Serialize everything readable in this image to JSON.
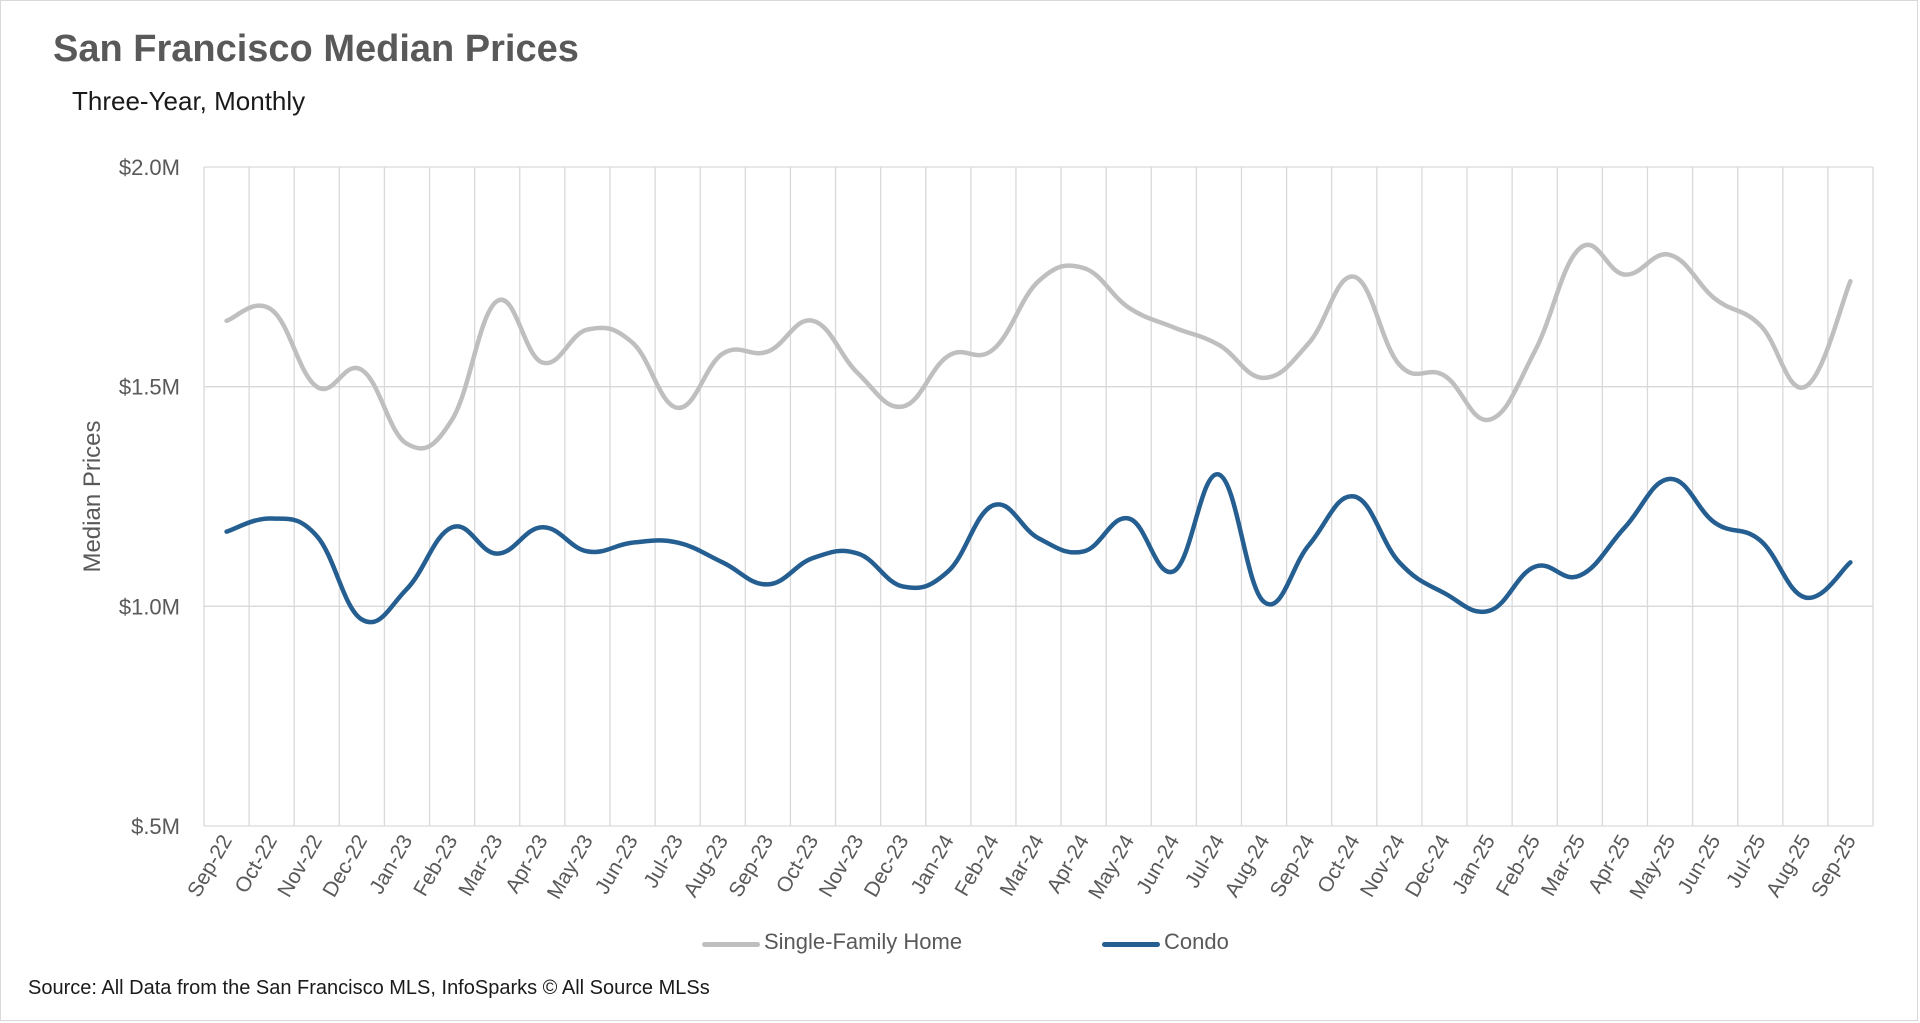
{
  "header": {
    "title": "San Francisco Median Prices",
    "subtitle": "Three-Year, Monthly"
  },
  "footer": {
    "source": "Source: All Data from the San Francisco MLS, InfoSparks © All Source MLSs"
  },
  "colors": {
    "single_family": "#bfbfbf",
    "condo": "#255e91",
    "grid": "#d9d9d9",
    "axis_text": "#595959"
  },
  "chart_data": {
    "type": "line",
    "title": "San Francisco Median Prices",
    "subtitle": "Three-Year, Monthly",
    "xlabel": "",
    "ylabel": "Median Prices",
    "ylim": [
      500000,
      2000000
    ],
    "yticks": [
      500000,
      1000000,
      1500000,
      2000000
    ],
    "ytick_labels": [
      "$.5M",
      "$1.0M",
      "$1.5M",
      "$2.0M"
    ],
    "grid": true,
    "legend_position": "bottom",
    "categories": [
      "Sep-22",
      "Oct-22",
      "Nov-22",
      "Dec-22",
      "Jan-23",
      "Feb-23",
      "Mar-23",
      "Apr-23",
      "May-23",
      "Jun-23",
      "Jul-23",
      "Aug-23",
      "Sep-23",
      "Oct-23",
      "Nov-23",
      "Dec-23",
      "Jan-24",
      "Feb-24",
      "Mar-24",
      "Apr-24",
      "May-24",
      "Jun-24",
      "Jul-24",
      "Aug-24",
      "Sep-24",
      "Oct-24",
      "Nov-24",
      "Dec-24",
      "Jan-25",
      "Feb-25",
      "Mar-25",
      "Apr-25",
      "May-25",
      "Jun-25",
      "Jul-25",
      "Aug-25",
      "Sep-25"
    ],
    "series": [
      {
        "name": "Single-Family Home",
        "color": "#bfbfbf",
        "values": [
          1650000,
          1675000,
          1500000,
          1538000,
          1370000,
          1425000,
          1695000,
          1555000,
          1630000,
          1600000,
          1452000,
          1575000,
          1580000,
          1650000,
          1530000,
          1455000,
          1570000,
          1585000,
          1740000,
          1770000,
          1680000,
          1635000,
          1595000,
          1520000,
          1600000,
          1750000,
          1550000,
          1525000,
          1425000,
          1580000,
          1815000,
          1755000,
          1800000,
          1700000,
          1640000,
          1500000,
          1740000
        ]
      },
      {
        "name": "Condo",
        "color": "#255e91",
        "values": [
          1170000,
          1200000,
          1160000,
          970000,
          1040000,
          1180000,
          1120000,
          1180000,
          1125000,
          1145000,
          1145000,
          1100000,
          1050000,
          1110000,
          1120000,
          1045000,
          1080000,
          1230000,
          1155000,
          1125000,
          1200000,
          1080000,
          1300000,
          1010000,
          1140000,
          1250000,
          1100000,
          1030000,
          990000,
          1090000,
          1070000,
          1180000,
          1290000,
          1190000,
          1150000,
          1020000,
          1100000
        ]
      }
    ]
  }
}
